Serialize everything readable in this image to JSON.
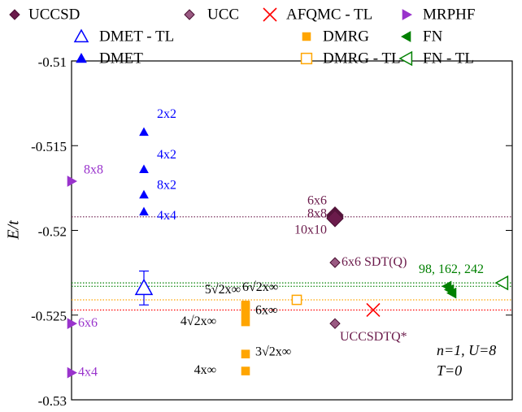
{
  "chart_data": {
    "type": "scatter",
    "ylabel": "E/t",
    "ylim": [
      -0.53,
      -0.51
    ],
    "yticks": [
      -0.53,
      -0.525,
      -0.52,
      -0.515,
      -0.51
    ],
    "annotations": [
      "n=1, U=8",
      "T=0"
    ],
    "hlines": [
      {
        "value": -0.5192,
        "color": "#6b1b4b"
      },
      {
        "value": -0.5231,
        "color": "#008000"
      },
      {
        "value": -0.5233,
        "color": "#008000"
      },
      {
        "value": -0.5241,
        "color": "#ffa500"
      },
      {
        "value": -0.5247,
        "color": "#ff0000"
      }
    ],
    "series": [
      {
        "name": "UCCSD",
        "color": "#6b1b4b",
        "marker": "diamond",
        "filled": true,
        "values": [
          -0.5191,
          -0.5192,
          -0.5193
        ],
        "labels": [
          "6x6",
          "8x8",
          "10x10"
        ]
      },
      {
        "name": "UCC",
        "color": "#9a5a82",
        "marker": "diamond",
        "filled": true,
        "values": [
          -0.5219,
          -0.5255
        ],
        "labels": [
          "6x6 SDT(Q)",
          "UCCSDTQ*"
        ]
      },
      {
        "name": "AFQMC - TL",
        "color": "#ff0000",
        "marker": "x",
        "filled": false,
        "values": [
          -0.5247
        ]
      },
      {
        "name": "MRPHF",
        "color": "#9933cc",
        "marker": "tri-right",
        "filled": true,
        "values": [
          -0.5171,
          -0.5255,
          -0.5284
        ],
        "labels": [
          "8x8",
          "6x6",
          "4x4"
        ]
      },
      {
        "name": "DMET - TL",
        "color": "#0000ff",
        "marker": "tri-up",
        "filled": false,
        "values": [
          -0.5234
        ],
        "errors": [
          0.001
        ]
      },
      {
        "name": "DMRG",
        "color": "#ffa500",
        "marker": "square",
        "filled": true,
        "values": [
          -0.5283,
          -0.5273,
          -0.5254,
          -0.5249,
          -0.5245,
          -0.5244
        ],
        "labels": [
          "4x∞",
          "3√2x∞",
          "4√2x∞",
          "6x∞",
          "5√2x∞",
          "6√2x∞"
        ]
      },
      {
        "name": "FN",
        "color": "#008000",
        "marker": "tri-left",
        "filled": true,
        "values": [
          -0.5233,
          -0.5235,
          -0.5237
        ],
        "label": "98, 162, 242"
      },
      {
        "name": "DMET",
        "color": "#0000ff",
        "marker": "tri-up",
        "filled": true,
        "values": [
          -0.5142,
          -0.5164,
          -0.5179,
          -0.5189
        ],
        "labels": [
          "2x2",
          "4x2",
          "8x2",
          "4x4"
        ]
      },
      {
        "name": "DMRG - TL",
        "color": "#ffa500",
        "marker": "square",
        "filled": false,
        "values": [
          -0.5241
        ],
        "errors": [
          0.0002
        ]
      },
      {
        "name": "FN - TL",
        "color": "#008000",
        "marker": "tri-left",
        "filled": false,
        "values": [
          -0.5231
        ]
      }
    ]
  }
}
